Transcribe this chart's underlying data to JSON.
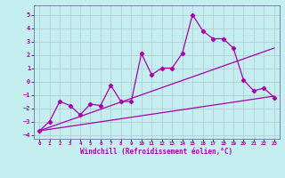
{
  "xlabel": "Windchill (Refroidissement éolien,°C)",
  "xlim": [
    -0.5,
    23.5
  ],
  "ylim": [
    -4.3,
    5.7
  ],
  "yticks": [
    -4,
    -3,
    -2,
    -1,
    0,
    1,
    2,
    3,
    4,
    5
  ],
  "xticks": [
    0,
    1,
    2,
    3,
    4,
    5,
    6,
    7,
    8,
    9,
    10,
    11,
    12,
    13,
    14,
    15,
    16,
    17,
    18,
    19,
    20,
    21,
    22,
    23
  ],
  "background_color": "#c5eef0",
  "line_color": "#aa00aa",
  "grid_color": "#b0c8cc",
  "jagged_x": [
    0,
    1,
    2,
    3,
    4,
    5,
    6,
    7,
    8,
    9,
    10,
    11,
    12,
    13,
    14,
    15,
    16,
    17,
    18,
    19,
    20,
    21,
    22,
    23
  ],
  "jagged_y": [
    -3.7,
    -3.0,
    -1.5,
    -1.8,
    -2.5,
    -1.7,
    -1.8,
    -0.3,
    -1.5,
    -1.5,
    2.1,
    0.5,
    1.0,
    1.0,
    2.1,
    5.0,
    3.8,
    3.2,
    3.2,
    2.5,
    0.1,
    -0.7,
    -0.5,
    -1.2
  ],
  "upper_line_x": [
    0,
    23
  ],
  "upper_line_y": [
    -3.7,
    2.5
  ],
  "lower_line_x": [
    0,
    23
  ],
  "lower_line_y": [
    -3.7,
    -1.1
  ]
}
